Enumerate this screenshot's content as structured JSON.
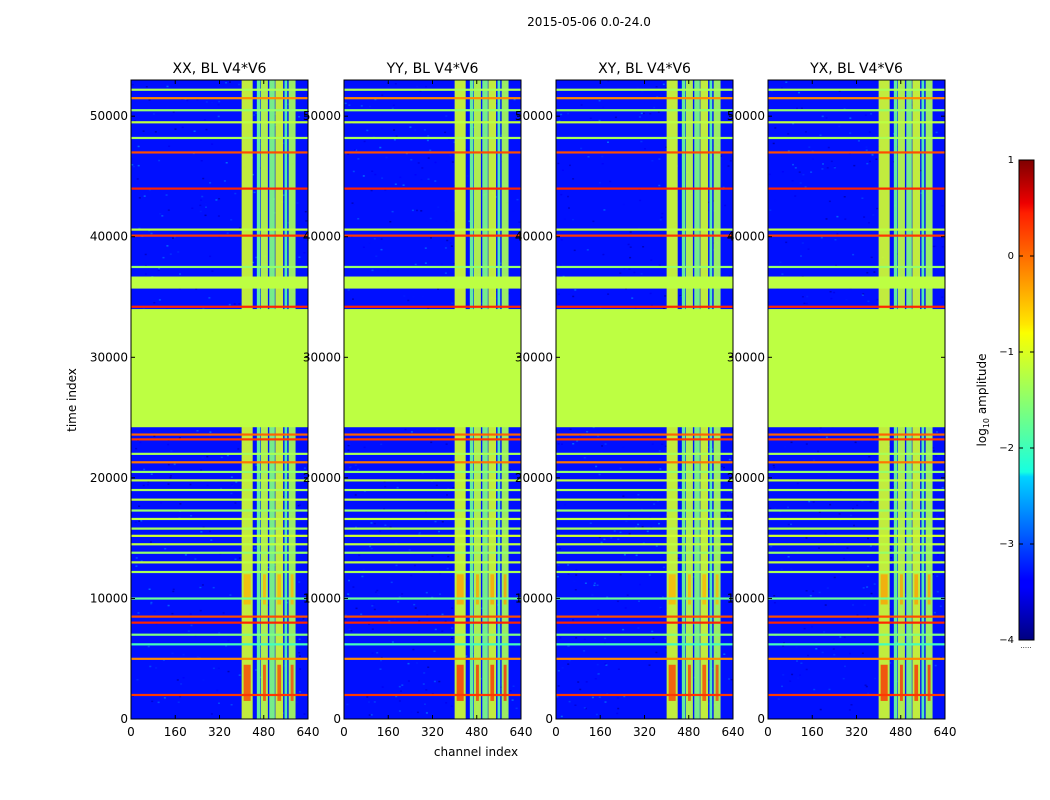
{
  "figure": {
    "suptitle": "2015-05-06 0.0-24.0",
    "xlabel": "channel index",
    "ylabel": "time index"
  },
  "chart_data": {
    "type": "heatmap",
    "x_ticks": [
      0,
      160,
      320,
      480,
      640
    ],
    "y_ticks": [
      0,
      10000,
      20000,
      30000,
      40000,
      50000
    ],
    "xlim": [
      0,
      640
    ],
    "ylim": [
      0,
      53000
    ],
    "panels": [
      {
        "title": "XX, BL V4*V6",
        "polarization": "XX"
      },
      {
        "title": "YY, BL V4*V6",
        "polarization": "YY"
      },
      {
        "title": "XY, BL V4*V6",
        "polarization": "XY"
      },
      {
        "title": "YX, BL V4*V6",
        "polarization": "YX"
      }
    ],
    "background_log10_amplitude": -3.3,
    "flagged_time_ranges": [
      {
        "start": 24200,
        "end": 34000,
        "log10_amplitude": -1.2
      },
      {
        "start": 35700,
        "end": 36700,
        "log10_amplitude": -1.2
      }
    ],
    "horizontal_lines": [
      {
        "t": 2000,
        "log10_amplitude": 0.1
      },
      {
        "t": 5000,
        "log10_amplitude": -0.3
      },
      {
        "t": 6200,
        "log10_amplitude": -1.8
      },
      {
        "t": 7000,
        "log10_amplitude": -1.5
      },
      {
        "t": 8000,
        "log10_amplitude": 0.2
      },
      {
        "t": 8500,
        "log10_amplitude": 0.0
      },
      {
        "t": 10000,
        "log10_amplitude": -1.6
      },
      {
        "t": 12200,
        "log10_amplitude": -1.3
      },
      {
        "t": 13000,
        "log10_amplitude": -1.2
      },
      {
        "t": 13800,
        "log10_amplitude": -1.4
      },
      {
        "t": 14500,
        "log10_amplitude": -1.2
      },
      {
        "t": 15200,
        "log10_amplitude": -1.1
      },
      {
        "t": 15800,
        "log10_amplitude": -1.3
      },
      {
        "t": 16600,
        "log10_amplitude": -1.2
      },
      {
        "t": 17300,
        "log10_amplitude": -1.4
      },
      {
        "t": 18200,
        "log10_amplitude": -1.2
      },
      {
        "t": 19000,
        "log10_amplitude": -1.3
      },
      {
        "t": 19800,
        "log10_amplitude": -1.2
      },
      {
        "t": 20500,
        "log10_amplitude": -1.4
      },
      {
        "t": 21300,
        "log10_amplitude": -0.2
      },
      {
        "t": 22000,
        "log10_amplitude": -1.3
      },
      {
        "t": 23200,
        "log10_amplitude": 0.1
      },
      {
        "t": 23600,
        "log10_amplitude": -0.1
      },
      {
        "t": 34200,
        "log10_amplitude": 0.2
      },
      {
        "t": 37500,
        "log10_amplitude": -1.4
      },
      {
        "t": 40100,
        "log10_amplitude": 0.1
      },
      {
        "t": 40600,
        "log10_amplitude": -1.2
      },
      {
        "t": 44000,
        "log10_amplitude": 0.2
      },
      {
        "t": 47000,
        "log10_amplitude": 0.0
      },
      {
        "t": 48200,
        "log10_amplitude": -1.3
      },
      {
        "t": 49500,
        "log10_amplitude": -1.2
      },
      {
        "t": 50500,
        "log10_amplitude": -1.4
      },
      {
        "t": 51500,
        "log10_amplitude": -0.3
      },
      {
        "t": 52200,
        "log10_amplitude": -1.3
      }
    ],
    "rfi_channel_bands": [
      {
        "start": 400,
        "end": 440,
        "log10_amplitude": -1.1
      },
      {
        "start": 455,
        "end": 468,
        "log10_amplitude": -1.6
      },
      {
        "start": 470,
        "end": 495,
        "log10_amplitude": -1.2
      },
      {
        "start": 500,
        "end": 520,
        "log10_amplitude": -1.5
      },
      {
        "start": 522,
        "end": 550,
        "log10_amplitude": -1.1
      },
      {
        "start": 555,
        "end": 565,
        "log10_amplitude": -1.7
      },
      {
        "start": 570,
        "end": 595,
        "log10_amplitude": -1.3
      }
    ],
    "hot_spots": [
      {
        "t_start": 1500,
        "t_end": 4500,
        "log10_amplitude": 0.1
      },
      {
        "t_start": 9500,
        "t_end": 12000,
        "log10_amplitude": -0.5
      }
    ],
    "colorbar": {
      "label_prefix": "log",
      "label_subscript": "10",
      "label_suffix": " amplitude",
      "ticks": [
        1,
        0,
        -1,
        -2,
        -3,
        -4
      ],
      "tick_labels": [
        "1",
        "0",
        "−1",
        "−2",
        "−3",
        "−4"
      ],
      "vmin": -4,
      "vmax": 1,
      "colormap": "jet",
      "offset_text": "....."
    }
  }
}
